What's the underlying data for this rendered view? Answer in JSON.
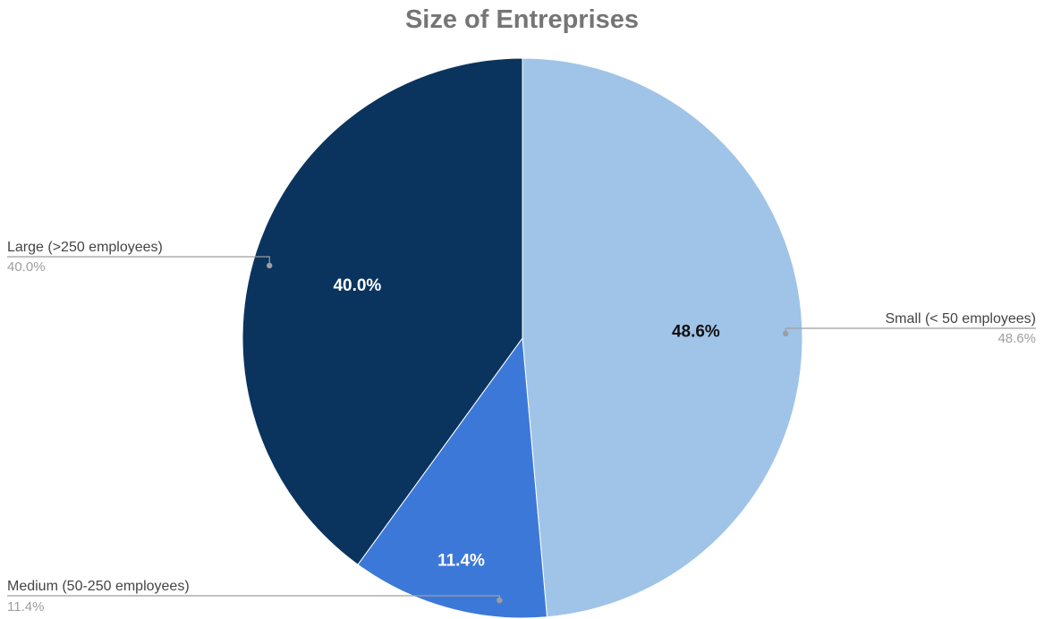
{
  "chart_data": {
    "type": "pie",
    "title": "Size of Entreprises",
    "slices": [
      {
        "name": "Small (< 50 employees)",
        "value": 48.6,
        "label": "48.6%",
        "color": "#a0c4e8",
        "label_color": "#111111"
      },
      {
        "name": "Medium (50-250 employees)",
        "value": 11.4,
        "label": "11.4%",
        "color": "#3c78d8",
        "label_color": "#ffffff"
      },
      {
        "name": "Large (>250 employees)",
        "value": 40.0,
        "label": "40.0%",
        "color": "#0a345e",
        "label_color": "#ffffff"
      }
    ],
    "start_angle": "top",
    "direction": "clockwise",
    "legend": "callout-labels"
  }
}
